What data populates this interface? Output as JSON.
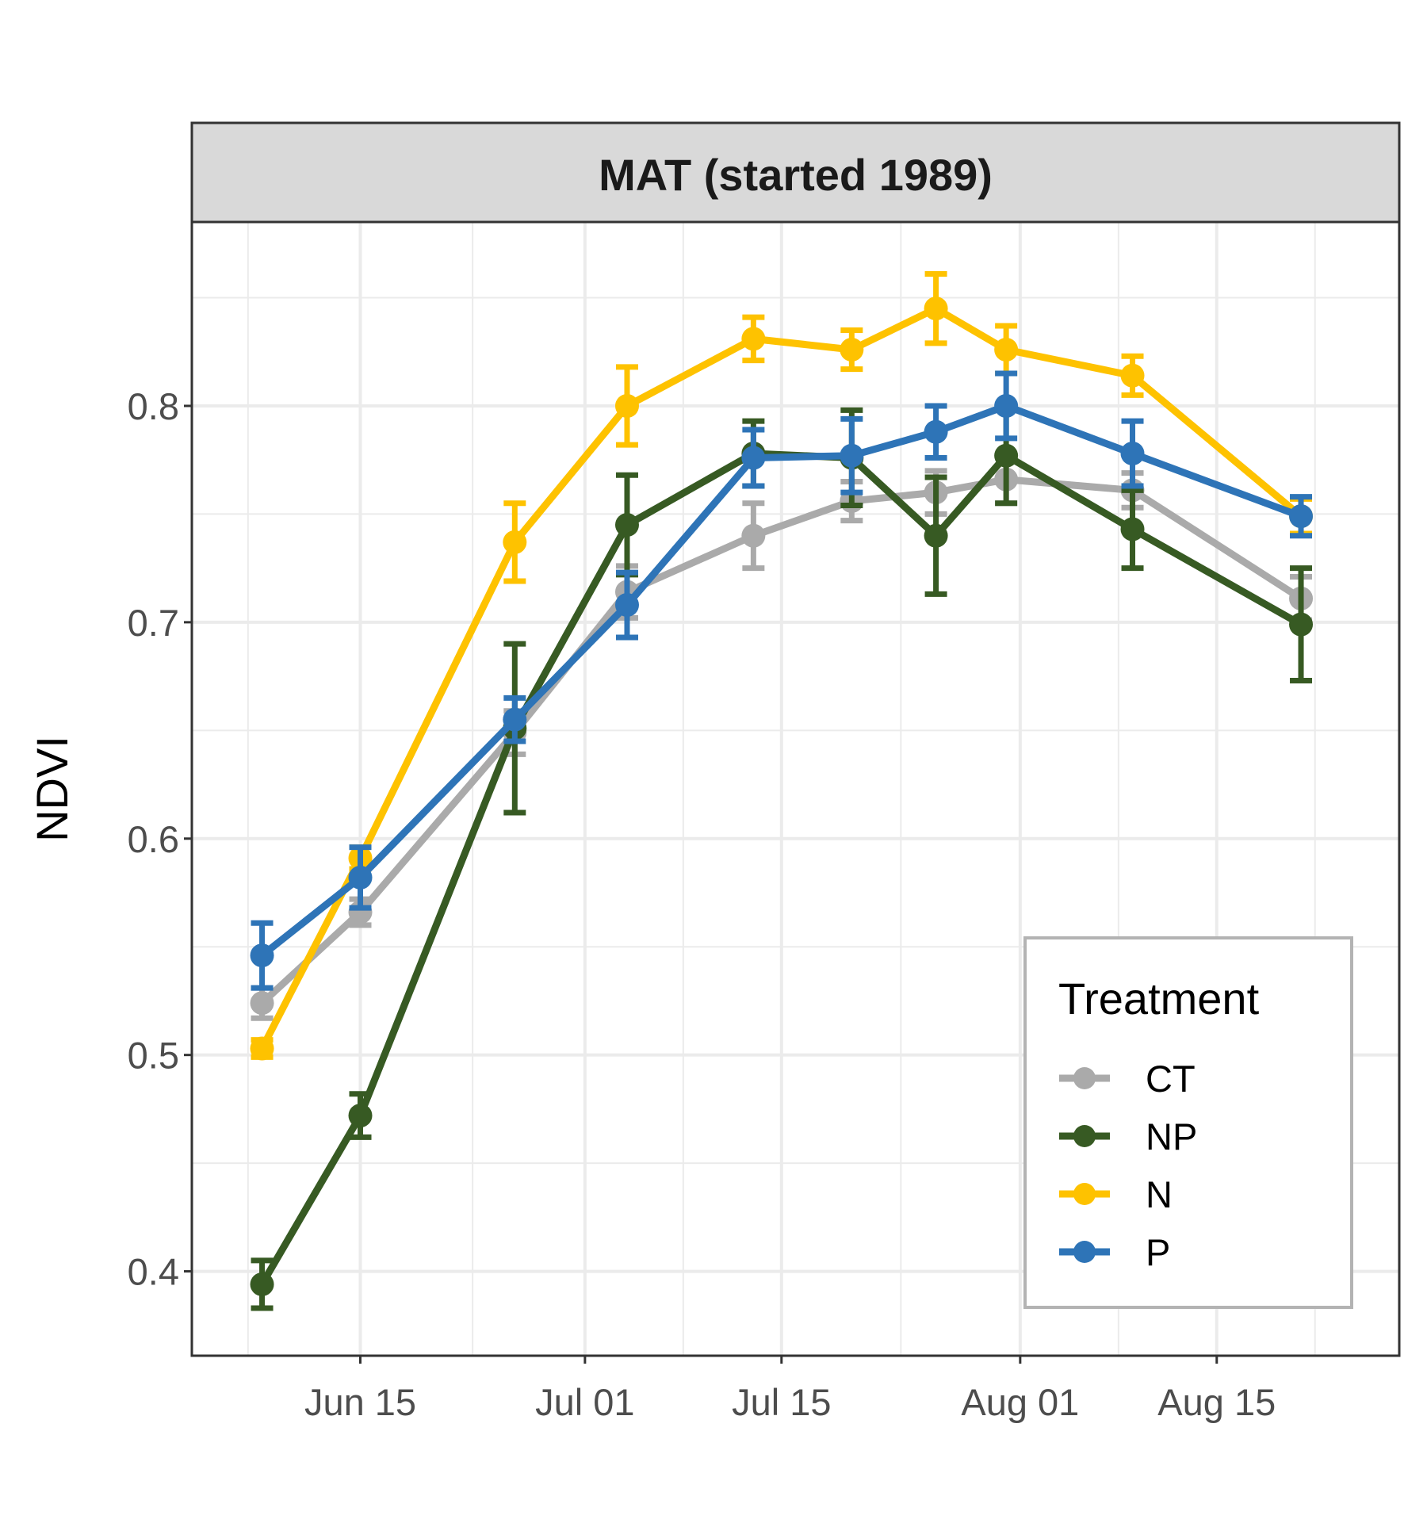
{
  "chart_data": {
    "type": "line",
    "facet_title": "MAT (started 1989)",
    "xlabel": "",
    "ylabel": "NDVI",
    "x_ticks": [
      "Jun 15",
      "Jul 01",
      "Jul 15",
      "Aug 01",
      "Aug 15"
    ],
    "x_tick_dates": [
      "2017-06-15",
      "2017-07-01",
      "2017-07-15",
      "2017-08-01",
      "2017-08-15"
    ],
    "y_ticks": [
      "0.4",
      "0.5",
      "0.6",
      "0.7",
      "0.8"
    ],
    "xlim": [
      "2017-06-03",
      "2017-08-28"
    ],
    "ylim": [
      0.361,
      0.885
    ],
    "grid": true,
    "legend": {
      "title": "Treatment",
      "position": "bottom-right"
    },
    "series": [
      {
        "name": "CT",
        "color": "#aaaaaa",
        "x": [
          "2017-06-08",
          "2017-06-15",
          "2017-06-26",
          "2017-07-04",
          "2017-07-13",
          "2017-07-20",
          "2017-07-26",
          "2017-07-31",
          "2017-08-09",
          "2017-08-21"
        ],
        "y": [
          0.524,
          0.566,
          0.649,
          0.714,
          0.74,
          0.756,
          0.76,
          0.766,
          0.761,
          0.711
        ],
        "err": [
          0.007,
          0.006,
          0.01,
          0.012,
          0.015,
          0.009,
          0.01,
          0.011,
          0.008,
          0.01
        ]
      },
      {
        "name": "NP",
        "color": "#375a23",
        "x": [
          "2017-06-08",
          "2017-06-15",
          "2017-06-26",
          "2017-07-04",
          "2017-07-13",
          "2017-07-20",
          "2017-07-26",
          "2017-07-31",
          "2017-08-09",
          "2017-08-21"
        ],
        "y": [
          0.394,
          0.472,
          0.651,
          0.745,
          0.778,
          0.776,
          0.74,
          0.777,
          0.743,
          0.699
        ],
        "err": [
          0.011,
          0.01,
          0.039,
          0.023,
          0.015,
          0.022,
          0.027,
          0.022,
          0.018,
          0.026
        ]
      },
      {
        "name": "N",
        "color": "#fec200",
        "x": [
          "2017-06-08",
          "2017-06-15",
          "2017-06-26",
          "2017-07-04",
          "2017-07-13",
          "2017-07-20",
          "2017-07-26",
          "2017-07-31",
          "2017-08-09",
          "2017-08-21"
        ],
        "y": [
          0.503,
          0.591,
          0.737,
          0.8,
          0.831,
          0.826,
          0.845,
          0.826,
          0.814,
          0.749
        ],
        "err": [
          0.004,
          0.005,
          0.018,
          0.018,
          0.01,
          0.009,
          0.016,
          0.011,
          0.009,
          0.008
        ]
      },
      {
        "name": "P",
        "color": "#2e74b7",
        "x": [
          "2017-06-08",
          "2017-06-15",
          "2017-06-26",
          "2017-07-04",
          "2017-07-13",
          "2017-07-20",
          "2017-07-26",
          "2017-07-31",
          "2017-08-09",
          "2017-08-21"
        ],
        "y": [
          0.546,
          0.582,
          0.655,
          0.708,
          0.776,
          0.777,
          0.788,
          0.8,
          0.778,
          0.749
        ],
        "err": [
          0.015,
          0.014,
          0.01,
          0.015,
          0.013,
          0.017,
          0.012,
          0.015,
          0.015,
          0.009
        ]
      }
    ]
  }
}
